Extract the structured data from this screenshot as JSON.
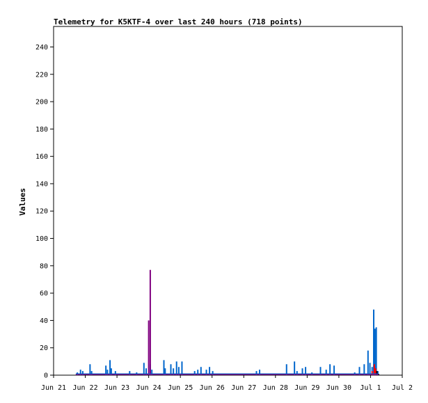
{
  "chart_data": {
    "type": "line",
    "title": "Telemetry for K5KTF-4 over last 240 hours (718 points)",
    "xlabel": "",
    "ylabel": "Values",
    "ylim": [
      0,
      255
    ],
    "y_ticks": [
      0,
      20,
      40,
      60,
      80,
      100,
      120,
      140,
      160,
      180,
      200,
      220,
      240
    ],
    "x_ticks": [
      "Jun 21",
      "Jun 22",
      "Jun 23",
      "Jun 24",
      "Jun 25",
      "Jun 26",
      "Jun 27",
      "Jun 28",
      "Jun 29",
      "Jun 30",
      "Jul 1",
      "Jul 2"
    ],
    "xlim_days": [
      0,
      11
    ],
    "grid": false,
    "legend": "none",
    "series": [
      {
        "color": "#0066cc",
        "spikes": [
          [
            0.75,
            2
          ],
          [
            0.85,
            4
          ],
          [
            0.92,
            3
          ],
          [
            1.15,
            8
          ],
          [
            1.2,
            3
          ],
          [
            1.65,
            7
          ],
          [
            1.7,
            4
          ],
          [
            1.78,
            11
          ],
          [
            1.82,
            5
          ],
          [
            1.95,
            3
          ],
          [
            2.4,
            3
          ],
          [
            2.62,
            2
          ],
          [
            2.85,
            9
          ],
          [
            2.92,
            5
          ],
          [
            3.05,
            8
          ],
          [
            3.1,
            4
          ],
          [
            3.48,
            11
          ],
          [
            3.52,
            5
          ],
          [
            3.7,
            8
          ],
          [
            3.78,
            5
          ],
          [
            3.88,
            10
          ],
          [
            3.95,
            6
          ],
          [
            4.05,
            10
          ],
          [
            4.45,
            3
          ],
          [
            4.55,
            4
          ],
          [
            4.65,
            6
          ],
          [
            4.82,
            4
          ],
          [
            4.92,
            6
          ],
          [
            5.02,
            3
          ],
          [
            6.4,
            3
          ],
          [
            6.5,
            4
          ],
          [
            7.35,
            8
          ],
          [
            7.6,
            10
          ],
          [
            7.68,
            3
          ],
          [
            7.85,
            5
          ],
          [
            7.95,
            6
          ],
          [
            8.15,
            2
          ],
          [
            8.42,
            6
          ],
          [
            8.6,
            4
          ],
          [
            8.72,
            8
          ],
          [
            8.85,
            7
          ],
          [
            9.5,
            2
          ],
          [
            9.65,
            6
          ],
          [
            9.8,
            8
          ],
          [
            9.92,
            18
          ],
          [
            9.98,
            9
          ],
          [
            10.05,
            6
          ],
          [
            10.1,
            48
          ],
          [
            10.14,
            34
          ],
          [
            10.18,
            35
          ],
          [
            10.23,
            3
          ]
        ]
      },
      {
        "color": "#800080",
        "spikes": [
          [
            3.0,
            40
          ],
          [
            3.05,
            77
          ]
        ]
      },
      {
        "color": "#ff0000",
        "spikes": [
          [
            10.05,
            3
          ],
          [
            10.12,
            8
          ],
          [
            10.16,
            5
          ]
        ]
      },
      {
        "color": "#000000",
        "spikes": [
          [
            10.2,
            3
          ],
          [
            10.25,
            1
          ]
        ]
      }
    ]
  }
}
